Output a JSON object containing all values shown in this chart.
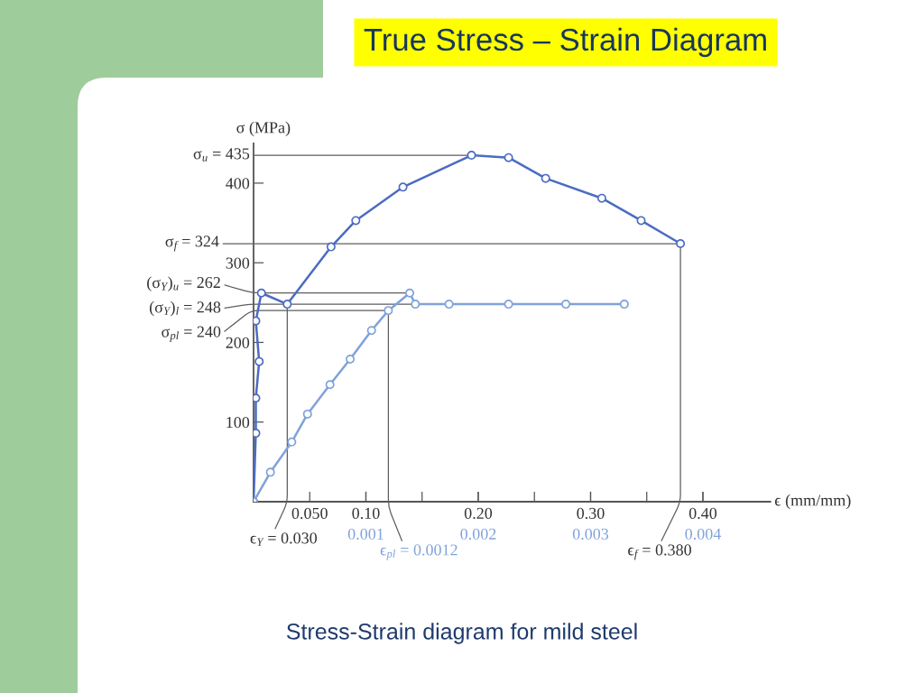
{
  "chart_data": {
    "type": "line",
    "title": "True Stress – Strain Diagram",
    "xlabel": "ϵ (mm/mm)",
    "ylabel": "σ (MPa)",
    "xlim": [
      0,
      0.46
    ],
    "xticks": [
      {
        "value": 0.05,
        "label": "0.050"
      },
      {
        "value": 0.1,
        "label": "0.10"
      },
      {
        "value": 0.15,
        "label": null
      },
      {
        "value": 0.2,
        "label": "0.20"
      },
      {
        "value": 0.25,
        "label": null
      },
      {
        "value": 0.3,
        "label": "0.30"
      },
      {
        "value": 0.35,
        "label": null
      },
      {
        "value": 0.4,
        "label": "0.40"
      }
    ],
    "x2lim": [
      0,
      0.0046
    ],
    "x2ticks": [
      0.001,
      0.002,
      0.003,
      0.004
    ],
    "ylim": [
      0,
      450
    ],
    "yticks": [
      100,
      200,
      300,
      400
    ],
    "marker": "circle",
    "series": [
      {
        "color": "#4b6cc1",
        "x": [
          0,
          0.002,
          0.002,
          0.005,
          0.002,
          0.007,
          0.03,
          0.069,
          0.091,
          0.133,
          0.194,
          0.227,
          0.26,
          0.31,
          0.345,
          0.38
        ],
        "values": [
          0,
          86,
          130,
          176,
          227,
          262,
          248,
          320,
          353,
          395,
          435,
          432,
          406,
          381,
          353,
          324
        ]
      },
      {
        "color": "#7fa2da",
        "axis": "x2",
        "x": [
          0,
          0.00015,
          0.00034,
          0.00048,
          0.00068,
          0.00086,
          0.00105,
          0.0012,
          0.00139,
          0.00144,
          0.00174,
          0.00227,
          0.00278,
          0.0033
        ],
        "values": [
          0,
          37,
          75,
          110,
          147,
          179,
          215,
          240,
          262,
          248,
          248,
          248,
          248,
          248
        ]
      }
    ],
    "annotations": [
      {
        "text": "σ$_{u}$ = 435",
        "x": 0.194,
        "y": 435
      },
      {
        "text": "σ$_{f}$ = 324",
        "x": 0.38,
        "y": 324
      },
      {
        "text": "(σ$_{Y}$)$_{u}$ = 262",
        "x": 0.139,
        "y": 262
      },
      {
        "text": "(σ$_{Y}$)$_{l}$ = 248",
        "x": 0.144,
        "y": 248
      },
      {
        "text": "σ$_{pl}$ = 240",
        "x": 0.12,
        "y": 240
      },
      {
        "text": "ϵ$_{Y}$ = 0.030",
        "x": 0.03,
        "y": 248
      },
      {
        "text": "ϵ$_{pl}$ = 0.0012",
        "x": 0.12,
        "y": 240
      },
      {
        "text": "ϵ$_{f}$ = 0.380",
        "x": 0.38,
        "y": 324
      },
      "Stress-Strain diagram for mild steel"
    ]
  }
}
